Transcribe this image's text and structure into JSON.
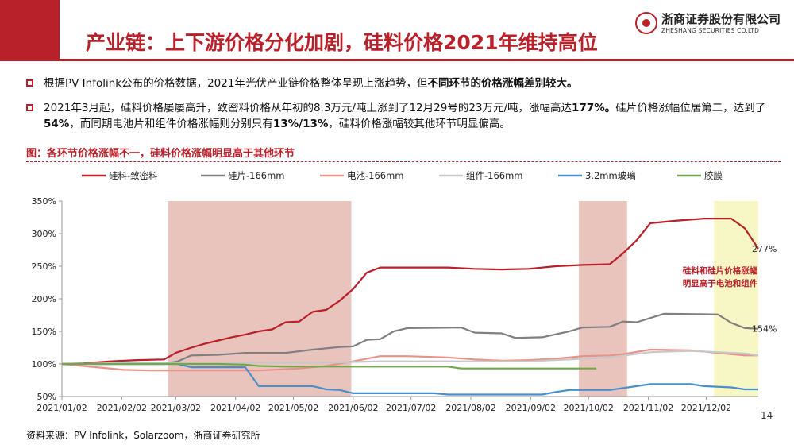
{
  "slide": {
    "title": "产业链：上下游价格分化加剧，硅料价格2021年维持高位",
    "page_number": "14",
    "source": "资料来源：PV Infolink，Solarzoom，浙商证券研究所"
  },
  "logo": {
    "cn": "浙商证券股份有限公司",
    "en": "ZHESHANG SECURITIES CO.LTD"
  },
  "bullets": [
    {
      "parts": [
        {
          "text": "根据PV Infolink公布的价格数据，2021年光伏产业链价格整体呈现上涨趋势，但",
          "bold": false
        },
        {
          "text": "不同环节的价格涨幅差别较大。",
          "bold": true
        }
      ]
    },
    {
      "parts": [
        {
          "text": "2021年3月起，硅料价格屡屡高升，致密料价格从年初的8.3万元/吨上涨到了12月29号的23万元/吨，涨幅高达",
          "bold": false
        },
        {
          "text": "177%。",
          "bold": true
        },
        {
          "text": "硅片价格涨幅位居第二，达到了",
          "bold": false
        },
        {
          "text": "54%",
          "bold": true
        },
        {
          "text": "，而同期电池片和组件价格涨幅则分别只有",
          "bold": false
        },
        {
          "text": "13%/13%",
          "bold": true
        },
        {
          "text": "，硅料价格涨幅较其他环节明显偏高。",
          "bold": false
        }
      ]
    }
  ],
  "figure_title": "图：各环节价格涨幅不一，硅料价格涨幅明显高于其他环节",
  "chart_data": {
    "type": "line",
    "x_start": "2021-01-02",
    "x_end": "2021-12-29",
    "x_ticks": [
      "2021/01/02",
      "2021/02/02",
      "2021/03/02",
      "2021/04/02",
      "2021/05/02",
      "2021/06/02",
      "2021/07/02",
      "2021/08/02",
      "2021/09/02",
      "2021/10/02",
      "2021/11/02",
      "2021/12/02"
    ],
    "ylim": [
      50,
      350
    ],
    "y_ticks": [
      50,
      100,
      150,
      200,
      250,
      300,
      350
    ],
    "y_tick_labels": [
      "50%",
      "100%",
      "150%",
      "200%",
      "250%",
      "300%",
      "350%"
    ],
    "y_unit": "%",
    "grid": false,
    "legend_position": "top",
    "shaded_periods": [
      {
        "start": "2021-02-26",
        "end": "2021-06-01",
        "color": "#e8c4bd"
      },
      {
        "start": "2021-09-27",
        "end": "2021-10-22",
        "color": "#e8c4bd"
      },
      {
        "start": "2021-12-06",
        "end": "2021-12-29",
        "color": "#f7f7c6"
      }
    ],
    "annotation": {
      "lines": [
        "硅料和硅片价格涨幅",
        "明显高于电池和组件"
      ],
      "color": "#b8202a"
    },
    "end_labels": [
      {
        "text": "277%",
        "date": "2021-12-29",
        "value": 277
      },
      {
        "text": "154%",
        "date": "2021-12-29",
        "value": 154
      }
    ],
    "series": [
      {
        "name": "硅料-致密料",
        "color": "#b8202a",
        "points": [
          [
            "2021-01-02",
            100
          ],
          [
            "2021-01-13",
            101
          ],
          [
            "2021-01-27",
            104
          ],
          [
            "2021-02-10",
            106
          ],
          [
            "2021-02-24",
            107
          ],
          [
            "2021-03-02",
            117
          ],
          [
            "2021-03-10",
            125
          ],
          [
            "2021-03-17",
            131
          ],
          [
            "2021-03-24",
            136
          ],
          [
            "2021-03-31",
            141
          ],
          [
            "2021-04-07",
            145
          ],
          [
            "2021-04-14",
            150
          ],
          [
            "2021-04-21",
            153
          ],
          [
            "2021-04-28",
            164
          ],
          [
            "2021-05-05",
            165
          ],
          [
            "2021-05-12",
            180
          ],
          [
            "2021-05-19",
            183
          ],
          [
            "2021-05-26",
            197
          ],
          [
            "2021-06-02",
            215
          ],
          [
            "2021-06-09",
            240
          ],
          [
            "2021-06-16",
            248
          ],
          [
            "2021-06-23",
            248
          ],
          [
            "2021-07-21",
            248
          ],
          [
            "2021-08-04",
            246
          ],
          [
            "2021-08-18",
            245
          ],
          [
            "2021-09-01",
            246
          ],
          [
            "2021-09-15",
            250
          ],
          [
            "2021-09-29",
            252
          ],
          [
            "2021-10-13",
            253
          ],
          [
            "2021-10-20",
            270
          ],
          [
            "2021-10-27",
            290
          ],
          [
            "2021-11-03",
            316
          ],
          [
            "2021-11-17",
            320
          ],
          [
            "2021-12-01",
            323
          ],
          [
            "2021-12-15",
            323
          ],
          [
            "2021-12-22",
            308
          ],
          [
            "2021-12-29",
            277
          ]
        ]
      },
      {
        "name": "硅片-166mm",
        "color": "#808080",
        "points": [
          [
            "2021-01-02",
            100
          ],
          [
            "2021-02-24",
            100
          ],
          [
            "2021-03-03",
            104
          ],
          [
            "2021-03-10",
            113
          ],
          [
            "2021-03-24",
            114
          ],
          [
            "2021-04-07",
            117
          ],
          [
            "2021-04-28",
            117
          ],
          [
            "2021-05-12",
            122
          ],
          [
            "2021-05-26",
            126
          ],
          [
            "2021-06-02",
            127
          ],
          [
            "2021-06-09",
            137
          ],
          [
            "2021-06-16",
            138
          ],
          [
            "2021-06-23",
            150
          ],
          [
            "2021-06-30",
            155
          ],
          [
            "2021-07-28",
            156
          ],
          [
            "2021-08-04",
            148
          ],
          [
            "2021-08-18",
            147
          ],
          [
            "2021-08-25",
            140
          ],
          [
            "2021-09-08",
            141
          ],
          [
            "2021-09-22",
            150
          ],
          [
            "2021-09-29",
            156
          ],
          [
            "2021-10-13",
            157
          ],
          [
            "2021-10-20",
            165
          ],
          [
            "2021-10-27",
            164
          ],
          [
            "2021-11-10",
            177
          ],
          [
            "2021-12-08",
            176
          ],
          [
            "2021-12-15",
            163
          ],
          [
            "2021-12-22",
            155
          ],
          [
            "2021-12-29",
            154
          ]
        ]
      },
      {
        "name": "电池-166mm",
        "color": "#e8928a",
        "points": [
          [
            "2021-01-02",
            100
          ],
          [
            "2021-01-20",
            95
          ],
          [
            "2021-02-03",
            91
          ],
          [
            "2021-02-17",
            90
          ],
          [
            "2021-03-10",
            90
          ],
          [
            "2021-03-24",
            90
          ],
          [
            "2021-04-14",
            90
          ],
          [
            "2021-05-05",
            93
          ],
          [
            "2021-05-19",
            97
          ],
          [
            "2021-06-02",
            104
          ],
          [
            "2021-06-16",
            112
          ],
          [
            "2021-06-30",
            112
          ],
          [
            "2021-07-21",
            110
          ],
          [
            "2021-08-04",
            107
          ],
          [
            "2021-08-18",
            105
          ],
          [
            "2021-09-01",
            106
          ],
          [
            "2021-09-15",
            108
          ],
          [
            "2021-09-29",
            112
          ],
          [
            "2021-10-13",
            113
          ],
          [
            "2021-10-20",
            115
          ],
          [
            "2021-11-03",
            122
          ],
          [
            "2021-11-24",
            121
          ],
          [
            "2021-12-08",
            117
          ],
          [
            "2021-12-22",
            113
          ],
          [
            "2021-12-29",
            113
          ]
        ]
      },
      {
        "name": "组件-166mm",
        "color": "#c8c8c8",
        "points": [
          [
            "2021-01-02",
            100
          ],
          [
            "2021-01-27",
            101
          ],
          [
            "2021-02-24",
            101
          ],
          [
            "2021-03-24",
            101
          ],
          [
            "2021-04-21",
            102
          ],
          [
            "2021-05-19",
            102
          ],
          [
            "2021-06-02",
            103
          ],
          [
            "2021-06-16",
            104
          ],
          [
            "2021-07-07",
            104
          ],
          [
            "2021-08-04",
            104
          ],
          [
            "2021-09-01",
            104
          ],
          [
            "2021-09-22",
            107
          ],
          [
            "2021-10-13",
            110
          ],
          [
            "2021-11-03",
            118
          ],
          [
            "2021-11-24",
            120
          ],
          [
            "2021-12-08",
            118
          ],
          [
            "2021-12-22",
            116
          ],
          [
            "2021-12-29",
            113
          ]
        ]
      },
      {
        "name": "3.2mm玻璃",
        "color": "#4a8fc9",
        "points": [
          [
            "2021-01-02",
            100
          ],
          [
            "2021-03-03",
            100
          ],
          [
            "2021-03-10",
            95
          ],
          [
            "2021-04-07",
            95
          ],
          [
            "2021-04-14",
            66
          ],
          [
            "2021-05-12",
            66
          ],
          [
            "2021-05-19",
            61
          ],
          [
            "2021-05-26",
            60
          ],
          [
            "2021-06-02",
            55
          ],
          [
            "2021-07-14",
            55
          ],
          [
            "2021-07-21",
            53
          ],
          [
            "2021-08-25",
            53
          ],
          [
            "2021-09-08",
            53
          ],
          [
            "2021-09-15",
            57
          ],
          [
            "2021-09-22",
            60
          ],
          [
            "2021-10-13",
            60
          ],
          [
            "2021-10-27",
            66
          ],
          [
            "2021-11-03",
            69
          ],
          [
            "2021-11-24",
            69
          ],
          [
            "2021-12-01",
            66
          ],
          [
            "2021-12-15",
            64
          ],
          [
            "2021-12-22",
            61
          ],
          [
            "2021-12-29",
            61
          ]
        ]
      },
      {
        "name": "胶膜",
        "color": "#70a84a",
        "points": [
          [
            "2021-01-02",
            100
          ],
          [
            "2021-02-24",
            100
          ],
          [
            "2021-03-24",
            100
          ],
          [
            "2021-04-07",
            99
          ],
          [
            "2021-04-14",
            97
          ],
          [
            "2021-04-28",
            96
          ],
          [
            "2021-06-30",
            96
          ],
          [
            "2021-07-21",
            96
          ],
          [
            "2021-07-28",
            93
          ],
          [
            "2021-09-01",
            93
          ],
          [
            "2021-10-06",
            93
          ]
        ]
      }
    ]
  }
}
